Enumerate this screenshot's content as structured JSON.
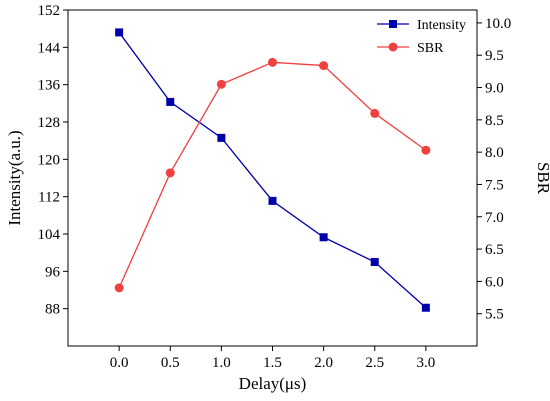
{
  "chart_data": {
    "type": "line",
    "x": [
      0.0,
      0.5,
      1.0,
      1.5,
      2.0,
      2.5,
      3.0
    ],
    "x_tick_labels": [
      "0.0",
      "0.5",
      "1.0",
      "1.5",
      "2.0",
      "2.5",
      "3.0"
    ],
    "xlim": [
      -0.5,
      3.5
    ],
    "xlabel": "Delay(μs)",
    "y_left": {
      "label": "Intensity(a.u.)",
      "ylim": [
        80,
        152
      ],
      "ticks": [
        88,
        96,
        104,
        112,
        120,
        128,
        136,
        144,
        152
      ],
      "tick_labels": [
        "88",
        "96",
        "104",
        "112",
        "120",
        "128",
        "136",
        "144",
        "152"
      ]
    },
    "y_right": {
      "label": "SBR",
      "ylim": [
        5.0,
        10.2
      ],
      "ticks": [
        5.5,
        6.0,
        6.5,
        7.0,
        7.5,
        8.0,
        8.5,
        9.0,
        9.5,
        10.0
      ],
      "tick_labels": [
        "5.5",
        "6.0",
        "6.5",
        "7.0",
        "7.5",
        "8.0",
        "8.5",
        "9.0",
        "9.5",
        "10.0"
      ]
    },
    "series": [
      {
        "name": "Intensity",
        "axis": "left",
        "marker": "square",
        "color": "#0000aa",
        "values": [
          147.2,
          132.3,
          124.6,
          111.1,
          103.3,
          98.0,
          88.2
        ]
      },
      {
        "name": "SBR",
        "axis": "right",
        "marker": "circle",
        "color": "#f04040",
        "values": [
          5.9,
          7.68,
          9.05,
          9.39,
          9.34,
          8.6,
          8.03
        ]
      }
    ],
    "legend": {
      "placement": "top-right"
    },
    "grid": false
  }
}
